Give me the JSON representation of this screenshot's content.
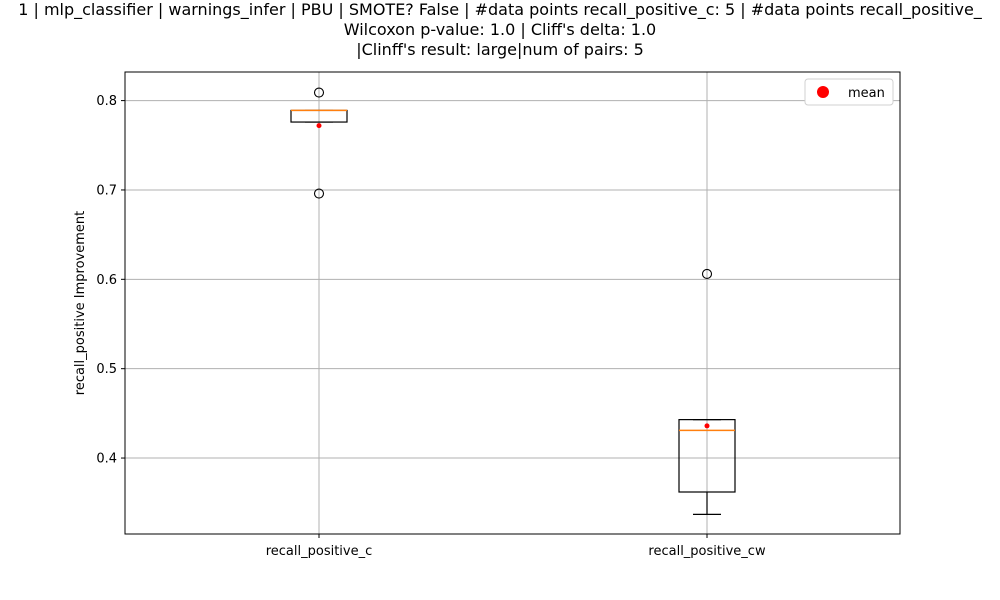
{
  "chart_data": {
    "type": "box",
    "title_lines": [
      "1 | mlp_classifier | warnings_infer | PBU | SMOTE? False | #data points recall_positive_c: 5 | #data points recall_positive_",
      "Wilcoxon p-value: 1.0 | Cliff's delta: 1.0",
      "|Clinff's result: large|num of pairs: 5"
    ],
    "xlabel": "",
    "ylabel": "recall_positive Improvement",
    "ylim": [
      0.315,
      0.832
    ],
    "yticks": [
      0.4,
      0.5,
      0.6,
      0.7,
      0.8
    ],
    "ytick_labels": [
      "0.4",
      "0.5",
      "0.6",
      "0.7",
      "0.8"
    ],
    "grid": true,
    "legend": {
      "placement": "top-right",
      "entries": [
        {
          "label": "mean",
          "marker": "circle",
          "color": "#ff0000"
        }
      ]
    },
    "categories": [
      "recall_positive_c",
      "recall_positive_cw"
    ],
    "boxes": [
      {
        "name": "recall_positive_c",
        "whisker_low": 0.776,
        "q1": 0.776,
        "median": 0.789,
        "q3": 0.789,
        "whisker_high": 0.789,
        "mean": 0.772,
        "fliers": [
          0.809,
          0.696
        ]
      },
      {
        "name": "recall_positive_cw",
        "whisker_low": 0.337,
        "q1": 0.362,
        "median": 0.431,
        "q3": 0.443,
        "whisker_high": 0.443,
        "mean": 0.436,
        "fliers": [
          0.606
        ]
      }
    ],
    "colors": {
      "box": "#000000",
      "median": "#ff7f0e",
      "mean": "#ff0000",
      "grid": "#b0b0b0"
    }
  }
}
